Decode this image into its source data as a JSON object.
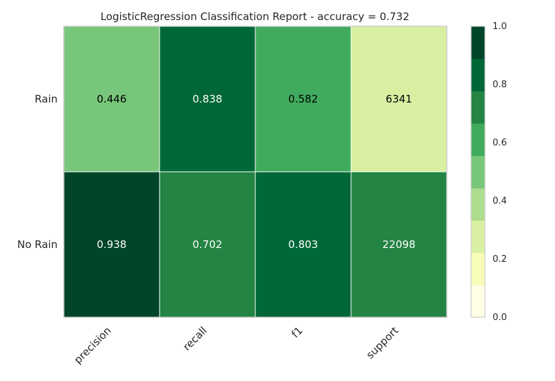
{
  "chart_data": {
    "type": "heatmap",
    "title": "LogisticRegression Classification Report - accuracy = 0.732",
    "columns": [
      "precision",
      "recall",
      "f1",
      "support"
    ],
    "rows": [
      "Rain",
      "No Rain"
    ],
    "values": [
      [
        0.446,
        0.838,
        0.582,
        6341
      ],
      [
        0.938,
        0.702,
        0.803,
        22098
      ]
    ],
    "cell_labels": [
      [
        "0.446",
        "0.838",
        "0.582",
        "6341"
      ],
      [
        "0.938",
        "0.702",
        "0.803",
        "22098"
      ]
    ],
    "support_max": 28439,
    "colorbar": {
      "range": [
        0.0,
        1.0
      ],
      "ticks": [
        "0.0",
        "0.2",
        "0.4",
        "0.6",
        "0.8",
        "1.0"
      ],
      "colors": [
        "#ffffe5",
        "#f7fcb9",
        "#d9f0a3",
        "#addd8e",
        "#78c679",
        "#41ab5d",
        "#238443",
        "#006837",
        "#004529"
      ]
    }
  }
}
